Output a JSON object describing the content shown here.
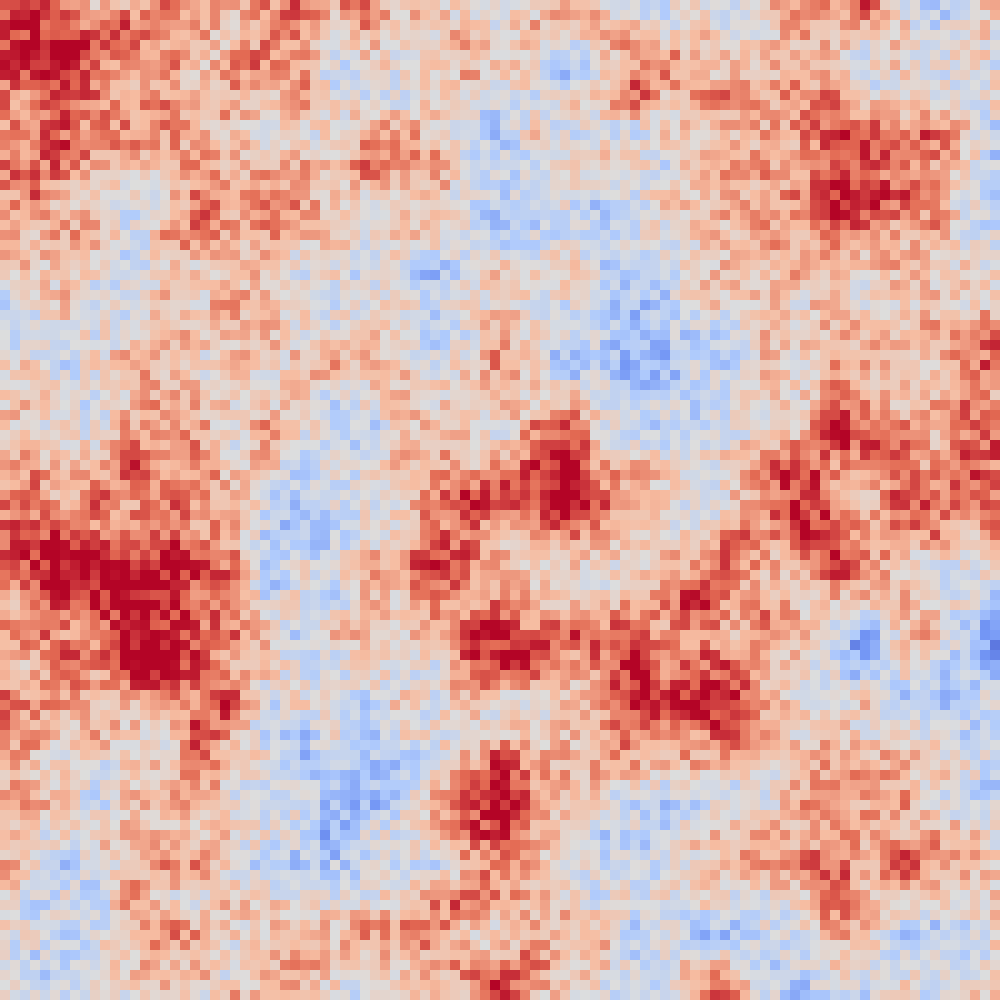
{
  "image": {
    "kind": "pixelated scalar field heatmap",
    "colormap": {
      "name": "coolwarm",
      "stops": [
        "#3b4cc0",
        "#7396f5",
        "#b0cbfc",
        "#dddddd",
        "#f6bda2",
        "#e36a53",
        "#b40426"
      ]
    },
    "grid": "none",
    "axes": "none",
    "legend": "none"
  }
}
